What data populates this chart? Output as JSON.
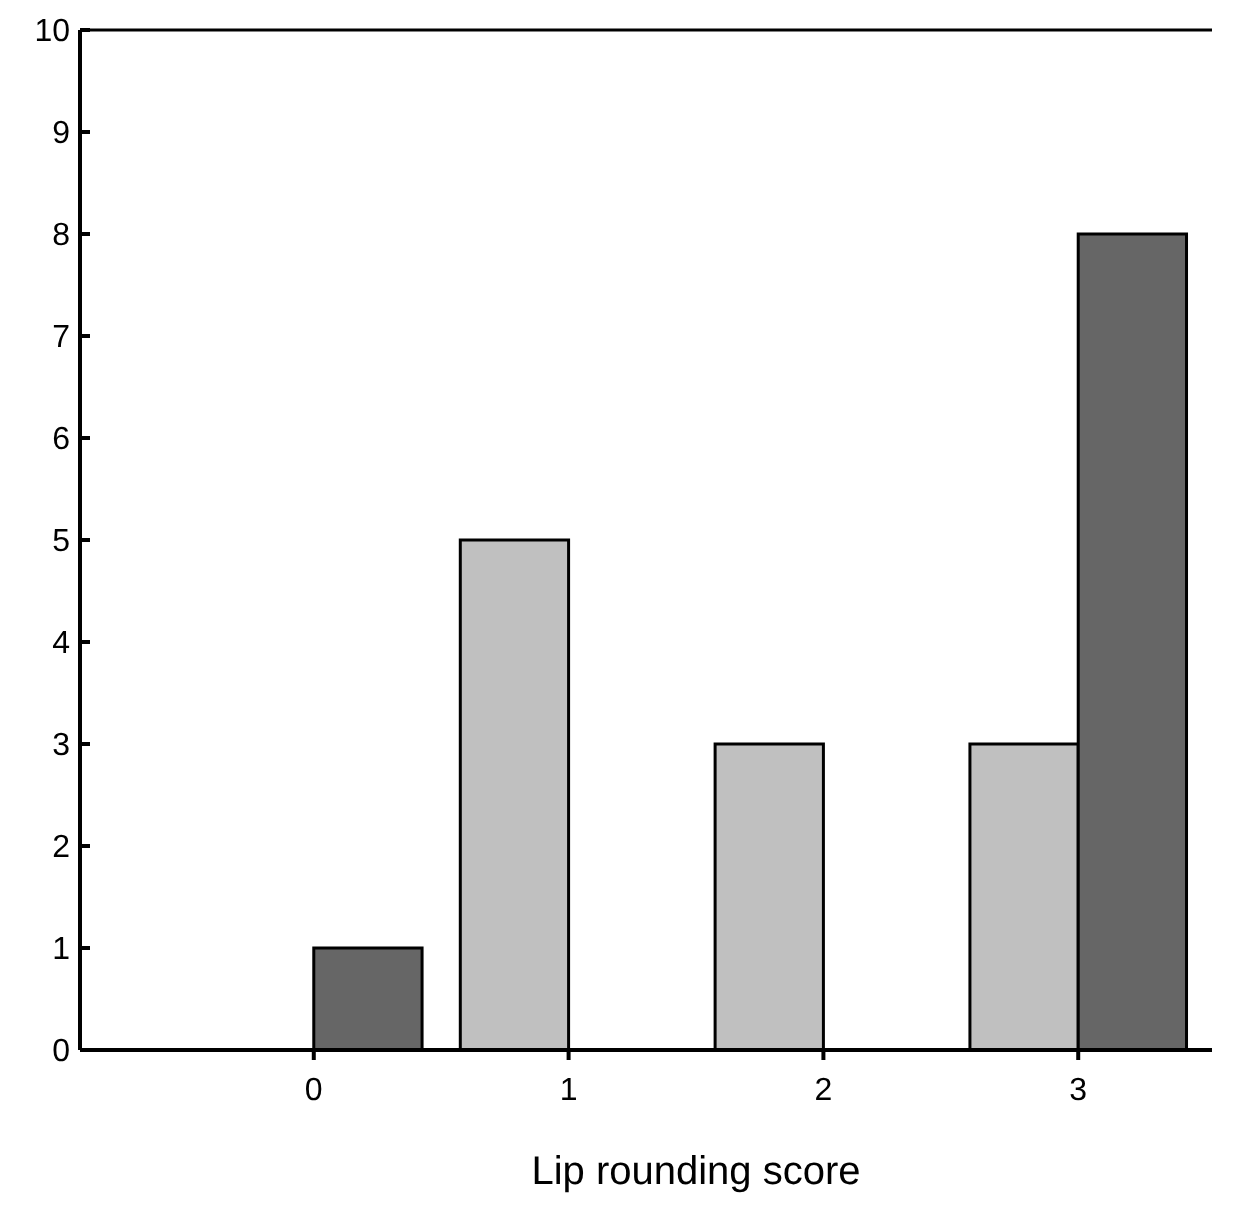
{
  "chart_data": {
    "type": "bar",
    "xlabel": "Lip rounding score",
    "categories": [
      "0",
      "1",
      "2",
      "3"
    ],
    "series": [
      {
        "color": "#c0c0c0",
        "values": [
          0,
          5,
          3,
          3
        ]
      },
      {
        "color": "#666666",
        "values": [
          1,
          0,
          0,
          8
        ]
      }
    ],
    "ylim": [
      0,
      10
    ],
    "yticks": [
      0,
      1,
      2,
      3,
      4,
      5,
      6,
      7,
      8,
      9,
      10
    ],
    "grid": false
  }
}
